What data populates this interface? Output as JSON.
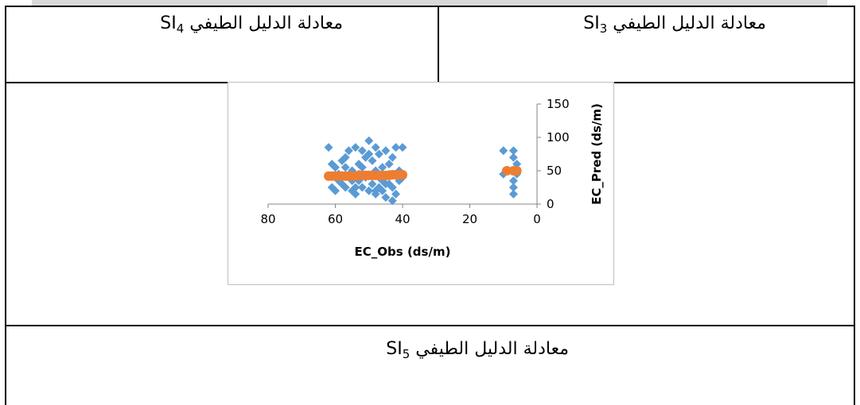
{
  "cells": {
    "si3_label": "معادلة الدليل الطيفي SI",
    "si3_sub": "3",
    "si4_label": "معادلة الدليل الطيفي SI",
    "si4_sub": "4",
    "si5_label": "معادلة الدليل الطيفي SI",
    "si5_sub": "5"
  },
  "chart_data": {
    "type": "scatter",
    "xlabel": "EC_Obs (ds/m)",
    "ylabel": "EC_Pred (ds/m)",
    "x_reversed": true,
    "xlim": [
      0,
      80
    ],
    "ylim": [
      0,
      150
    ],
    "xticks": [
      80,
      60,
      40,
      20,
      0
    ],
    "yticks": [
      0,
      50,
      100,
      150
    ],
    "grid": false,
    "legend": "none",
    "colors": {
      "series_blue": "#5b9bd5",
      "series_orange": "#ed7d31"
    },
    "series": [
      {
        "marker": "diamond",
        "color": "#5b9bd5",
        "points": [
          [
            62,
            85
          ],
          [
            61,
            60
          ],
          [
            60,
            20
          ],
          [
            59,
            45
          ],
          [
            58,
            30
          ],
          [
            58,
            65
          ],
          [
            57,
            25
          ],
          [
            57,
            55
          ],
          [
            56,
            80
          ],
          [
            56,
            40
          ],
          [
            55,
            20
          ],
          [
            55,
            50
          ],
          [
            54,
            15
          ],
          [
            54,
            85
          ],
          [
            53,
            35
          ],
          [
            53,
            45
          ],
          [
            52,
            25
          ],
          [
            52,
            55
          ],
          [
            51,
            40
          ],
          [
            51,
            70
          ],
          [
            50,
            95
          ],
          [
            50,
            20
          ],
          [
            49,
            30
          ],
          [
            49,
            65
          ],
          [
            48,
            15
          ],
          [
            48,
            85
          ],
          [
            48,
            50
          ],
          [
            47,
            40
          ],
          [
            47,
            75
          ],
          [
            46,
            20
          ],
          [
            46,
            55
          ],
          [
            45,
            30
          ],
          [
            45,
            10
          ],
          [
            45,
            80
          ],
          [
            44,
            45
          ],
          [
            44,
            60
          ],
          [
            43,
            5
          ],
          [
            43,
            25
          ],
          [
            43,
            70
          ],
          [
            42,
            15
          ],
          [
            42,
            85
          ],
          [
            41,
            35
          ],
          [
            41,
            50
          ],
          [
            40,
            40
          ],
          [
            40,
            85
          ],
          [
            61,
            25
          ],
          [
            59,
            35
          ],
          [
            54,
            25
          ],
          [
            49,
            45
          ],
          [
            46,
            35
          ],
          [
            52,
            80
          ],
          [
            57,
            70
          ],
          [
            44,
            30
          ],
          [
            48,
            20
          ],
          [
            50,
            75
          ],
          [
            55,
            35
          ],
          [
            42,
            45
          ],
          [
            60,
            55
          ],
          [
            47,
            25
          ],
          [
            53,
            60
          ],
          [
            10,
            80
          ],
          [
            10,
            45
          ],
          [
            7,
            80
          ],
          [
            7,
            70
          ],
          [
            7,
            50
          ],
          [
            7,
            35
          ],
          [
            7,
            25
          ],
          [
            7,
            15
          ],
          [
            6,
            60
          ],
          [
            6,
            45
          ]
        ]
      },
      {
        "marker": "circle",
        "color": "#ed7d31",
        "points": [
          [
            62,
            42
          ],
          [
            60,
            42
          ],
          [
            58,
            42
          ],
          [
            56,
            42
          ],
          [
            54,
            42
          ],
          [
            52,
            43
          ],
          [
            50,
            43
          ],
          [
            48,
            43
          ],
          [
            46,
            43
          ],
          [
            44,
            43
          ],
          [
            42,
            44
          ],
          [
            40,
            44
          ],
          [
            61,
            42
          ],
          [
            59,
            42
          ],
          [
            57,
            42
          ],
          [
            55,
            42
          ],
          [
            53,
            43
          ],
          [
            51,
            43
          ],
          [
            49,
            43
          ],
          [
            47,
            43
          ],
          [
            45,
            43
          ],
          [
            43,
            44
          ],
          [
            41,
            44
          ],
          [
            9,
            50
          ],
          [
            7,
            50
          ],
          [
            6,
            50
          ]
        ]
      }
    ]
  }
}
